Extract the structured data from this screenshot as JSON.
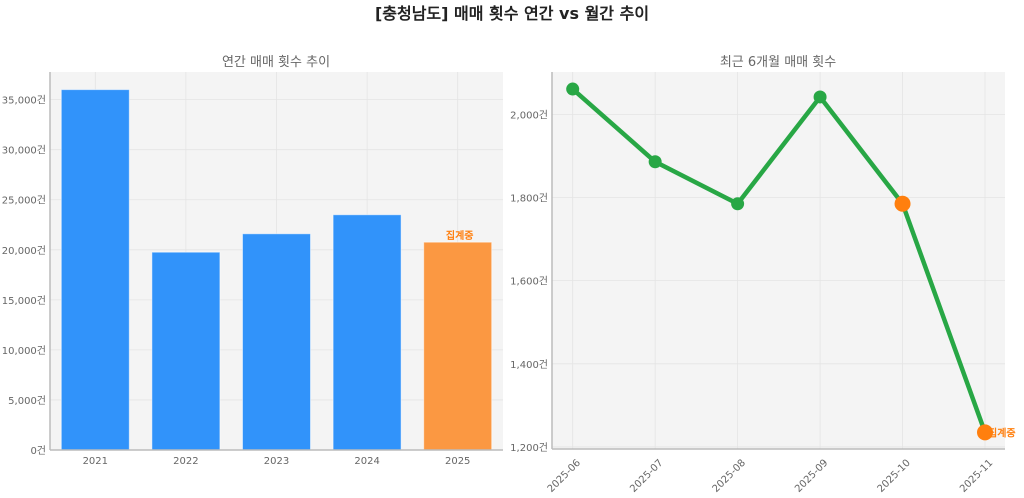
{
  "title": "[충청남도] 매매 횟수 연간 vs 월간 추이",
  "colors": {
    "bar": "#3193fa",
    "bar_partial": "#fb9842",
    "line": "#28a745",
    "partial_marker": "#ff7f0e",
    "plot_bg": "#f4f4f4"
  },
  "chart_data": [
    {
      "type": "bar",
      "title": "연간 매매 횟수 추이",
      "categories": [
        "2021",
        "2022",
        "2023",
        "2024",
        "2025"
      ],
      "values": [
        36000,
        19760,
        21600,
        23500,
        20760
      ],
      "partial_flags": [
        false,
        false,
        false,
        false,
        true
      ],
      "annotation": "집계중",
      "ylim": [
        0,
        37760
      ],
      "yticks": [
        0,
        5000,
        10000,
        15000,
        20000,
        25000,
        30000,
        35000
      ],
      "ytick_labels": [
        "0건",
        "5,000건",
        "10,000건",
        "15,000건",
        "20,000건",
        "25,000건",
        "30,000건",
        "35,000건"
      ],
      "grid": true
    },
    {
      "type": "line",
      "title": "최근 6개월 매매 횟수",
      "categories": [
        "2025-06",
        "2025-07",
        "2025-08",
        "2025-09",
        "2025-10",
        "2025-11"
      ],
      "values": [
        2061,
        1886,
        1785,
        2042,
        1785,
        1235
      ],
      "highlighted": [
        false,
        false,
        false,
        false,
        true,
        true
      ],
      "annotation": "집계중",
      "ylim": [
        1195,
        2102
      ],
      "yticks": [
        1200,
        1400,
        1600,
        1800,
        2000
      ],
      "ytick_labels": [
        "1,200건",
        "1,400건",
        "1,600건",
        "1,800건",
        "2,000건"
      ],
      "grid": true
    }
  ]
}
